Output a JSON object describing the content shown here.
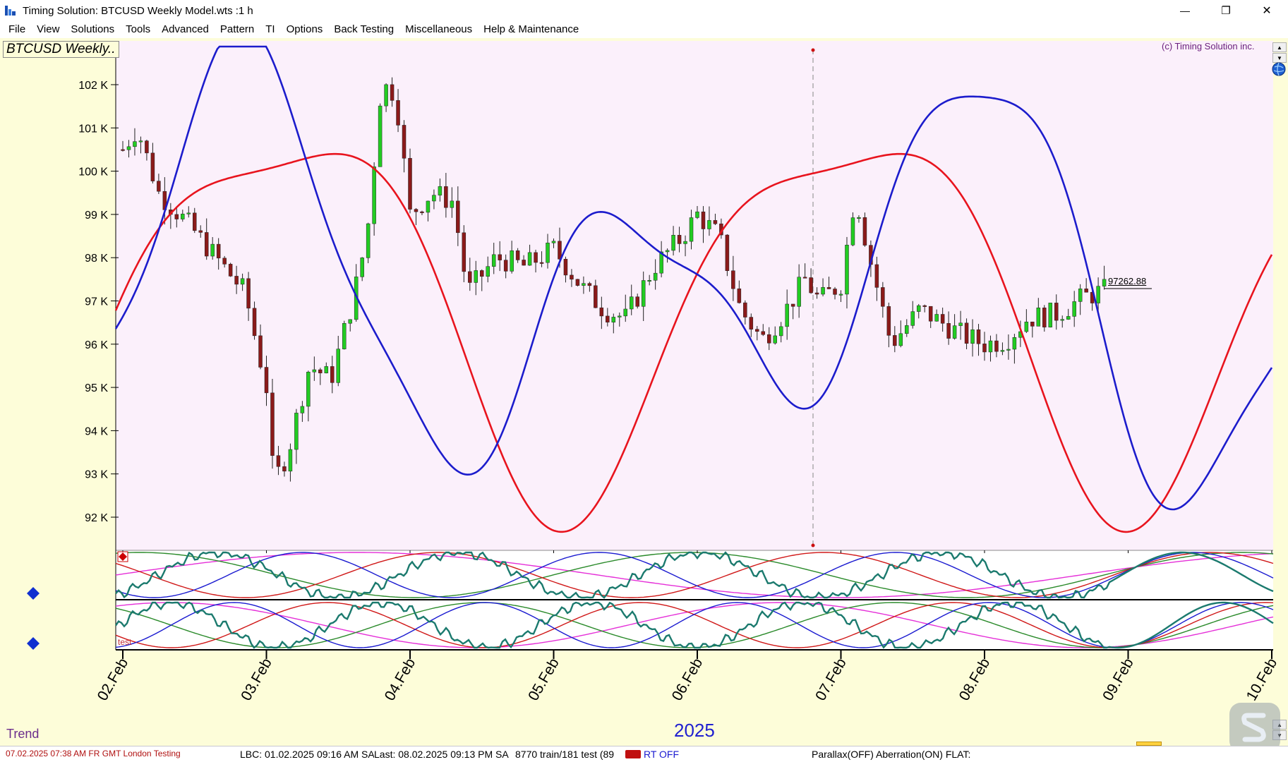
{
  "window": {
    "title": "Timing Solution:  BTCUSD Weekly Model.wts  :1 h",
    "minimize_glyph": "—",
    "restore_glyph": "❐",
    "close_glyph": "✕"
  },
  "menu": [
    "File",
    "View",
    "Solutions",
    "Tools",
    "Advanced",
    "Pattern",
    "TI",
    "Options",
    "Back Testing",
    "Miscellaneous",
    "Help & Maintenance"
  ],
  "chart": {
    "symbol_label": "BTCUSD Weekly..",
    "copyright": "(c) Timing Solution inc.",
    "last_price_label": "97262.88",
    "year_label": "2025",
    "bottom_label": "Trend",
    "panel_label": "test",
    "colors": {
      "background": "#fbf0fb",
      "red_line": "#e8141e",
      "blue_line": "#1c1ccc",
      "candle_up": "#22cc22",
      "candle_down": "#8b1a1a"
    }
  },
  "chart_data": {
    "type": "candlestick",
    "x_ticks": [
      "02.Feb",
      "03.Feb",
      "04.Feb",
      "05.Feb",
      "06.Feb",
      "07.Feb",
      "08.Feb",
      "09.Feb",
      "10.Feb"
    ],
    "y_ticks": [
      "102 K",
      "101 K",
      "100 K",
      "99 K",
      "98 K",
      "97 K",
      "96 K",
      "95 K",
      "94 K",
      "93 K",
      "92 K"
    ],
    "ylim": [
      91200,
      103000
    ],
    "last_price": 97262.88,
    "close_path": [
      [
        2.0,
        100.5
      ],
      [
        2.1,
        101.0
      ],
      [
        2.25,
        99.5
      ],
      [
        2.45,
        98.8
      ],
      [
        2.55,
        98.4
      ],
      [
        2.7,
        97.8
      ],
      [
        2.85,
        97.2
      ],
      [
        3.0,
        95.0
      ],
      [
        3.05,
        92.8
      ],
      [
        3.15,
        93.5
      ],
      [
        3.3,
        95.5
      ],
      [
        3.45,
        95.2
      ],
      [
        3.6,
        97.0
      ],
      [
        3.7,
        98.5
      ],
      [
        3.8,
        102.0
      ],
      [
        3.9,
        101.8
      ],
      [
        4.0,
        99.0
      ],
      [
        4.15,
        99.5
      ],
      [
        4.3,
        99.3
      ],
      [
        4.4,
        97.2
      ],
      [
        4.6,
        98.0
      ],
      [
        4.8,
        97.8
      ],
      [
        5.0,
        98.2
      ],
      [
        5.2,
        97.3
      ],
      [
        5.35,
        96.8
      ],
      [
        5.5,
        96.6
      ],
      [
        5.7,
        97.8
      ],
      [
        5.9,
        98.5
      ],
      [
        6.0,
        99.0
      ],
      [
        6.15,
        98.5
      ],
      [
        6.3,
        96.8
      ],
      [
        6.45,
        96.1
      ],
      [
        6.6,
        96.7
      ],
      [
        6.75,
        97.5
      ],
      [
        6.85,
        97.0
      ],
      [
        7.0,
        97.4
      ],
      [
        7.1,
        99.5
      ],
      [
        7.2,
        98.0
      ],
      [
        7.35,
        96.0
      ],
      [
        7.55,
        96.8
      ],
      [
        7.7,
        96.5
      ],
      [
        7.85,
        96.2
      ],
      [
        8.0,
        96.0
      ],
      [
        8.15,
        96.1
      ],
      [
        8.3,
        96.6
      ],
      [
        8.5,
        96.7
      ],
      [
        8.7,
        97.1
      ],
      [
        8.85,
        97.26
      ]
    ],
    "series": [
      {
        "name": "",
        "color": "red",
        "shape": "forecast cycle"
      },
      {
        "name": "",
        "color": "blue",
        "shape": "forecast cycle"
      }
    ]
  },
  "status": {
    "date_time": "07.02.2025  07:38 AM FR GMT London   Testing",
    "lbc": "LBC: 01.02.2025  09:16 AM SA",
    "last": "Last: 08.02.2025  09:13 PM SA",
    "train": "8770 train/181 test (89",
    "rt": "RT OFF",
    "parallax": "Parallax(OFF) Aberration(ON) FLAT:"
  }
}
